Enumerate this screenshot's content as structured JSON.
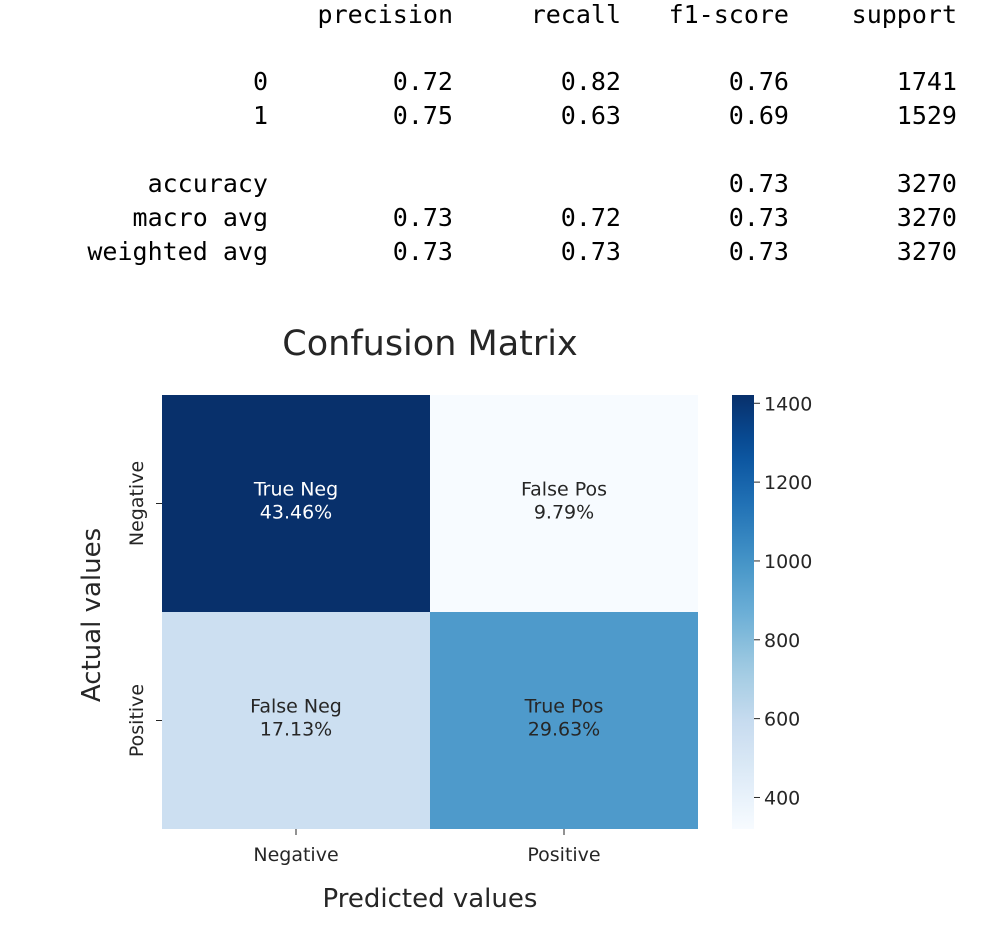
{
  "report": {
    "headers": [
      "precision",
      "recall",
      "f1-score",
      "support"
    ],
    "rows": [
      {
        "label": "0",
        "values": [
          "0.72",
          "0.82",
          "0.76",
          "1741"
        ]
      },
      {
        "label": "1",
        "values": [
          "0.75",
          "0.63",
          "0.69",
          "1529"
        ]
      },
      {
        "label": "accuracy",
        "values": [
          "",
          "",
          "0.73",
          "3270"
        ]
      },
      {
        "label": "macro avg",
        "values": [
          "0.73",
          "0.72",
          "0.73",
          "3270"
        ]
      },
      {
        "label": "weighted avg",
        "values": [
          "0.73",
          "0.73",
          "0.73",
          "3270"
        ]
      }
    ]
  },
  "chart_data": {
    "type": "heatmap",
    "title": "Confusion Matrix",
    "xlabel": "Predicted values",
    "ylabel": "Actual values",
    "x_categories": [
      "Negative",
      "Positive"
    ],
    "y_categories": [
      "Negative",
      "Positive"
    ],
    "values": [
      [
        1421,
        320
      ],
      [
        560,
        969
      ]
    ],
    "cell_labels": [
      [
        {
          "name": "True Neg",
          "pct": "43.46%"
        },
        {
          "name": "False Pos",
          "pct": "9.79%"
        }
      ],
      [
        {
          "name": "False Neg",
          "pct": "17.13%"
        },
        {
          "name": "True Pos",
          "pct": "29.63%"
        }
      ]
    ],
    "colormap": "Blues",
    "color_range": [
      320,
      1421
    ],
    "colorbar_ticks": [
      400,
      600,
      800,
      1000,
      1200,
      1400
    ]
  }
}
